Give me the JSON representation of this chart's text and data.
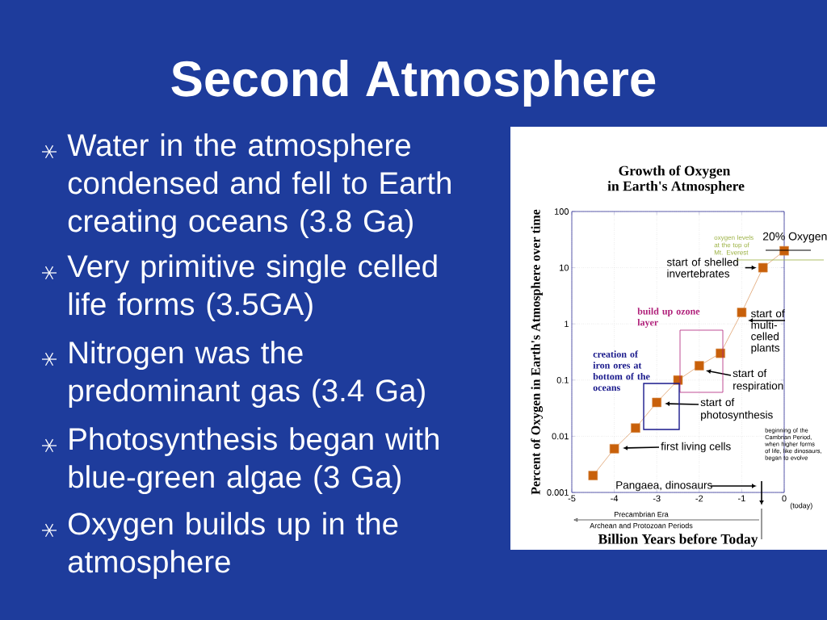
{
  "chart_data": {
    "type": "line",
    "title": "Growth of Oxygen",
    "subtitle": "in Earth's Atmosphere",
    "xlabel": "Billion Years before Today",
    "ylabel": "Percent of Oxygen in Earth's Atmosphere over time",
    "x": [
      -4.5,
      -4,
      -3.5,
      -3,
      -2.5,
      -2,
      -1.5,
      -1,
      -0.5,
      0
    ],
    "values": [
      0.002,
      0.006,
      0.014,
      0.04,
      0.1,
      0.18,
      0.3,
      1.6,
      10,
      20
    ],
    "color": "#c8600a",
    "marker": "square",
    "line_style": "solid",
    "log": true,
    "grid": true,
    "xlim": [
      -5,
      0
    ],
    "ylim": [
      0.001,
      100
    ],
    "xticks": [
      -5,
      -4,
      -3,
      -2,
      -1,
      0
    ],
    "yticks": [
      0.001,
      0.01,
      0.1,
      1,
      10,
      100
    ],
    "annotations": [
      "Second Atmosphere",
      "Water in the atmosphere condensed and fell to Earth creating oceans (3.8 Ga)",
      "Very primitive single celled life forms (3.5GA)",
      "Nitrogen was the predominant gas (3.4 Ga)",
      "Photosynthesis began with blue-green algae (3 Ga)",
      "Oxygen builds up in the atmosphere",
      {
        "text": "20% Oxygen",
        "x": 0,
        "y": 20
      },
      {
        "text": "start of shelled invertebrates",
        "x": -0.5,
        "y": 10
      },
      {
        "text": "start of multi-celled plants",
        "x": -1,
        "y": 1.6
      },
      "start of respiration",
      "start of photosynthesis",
      "first living cells",
      "Pangaea, dinosaurs",
      "build up ozone layer",
      "creation of iron ores at bottom of the oceans",
      "oxygen levels at the top of Mt. Everest",
      "(today)",
      "Precambrian Era",
      "Archean and Protozoan Periods",
      "beginning of the Cambrian Period, when higher forms of life, like dinosaurs, began to evolve"
    ]
  }
}
